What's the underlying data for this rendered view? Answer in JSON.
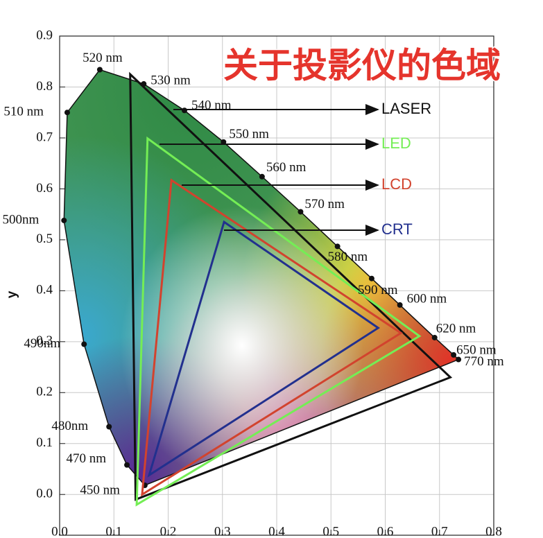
{
  "chart_data": {
    "type": "chromaticity",
    "title": "关于投影仪的色域",
    "ylabel": "y",
    "xlim": [
      0,
      0.8
    ],
    "ylim": [
      -0.08,
      0.9
    ],
    "xticks": [
      {
        "value": 0,
        "label": "0.0"
      },
      0.1,
      0.2,
      0.3,
      0.4,
      0.5,
      0.6,
      0.7,
      0.8
    ],
    "yticks": [
      {
        "value": 0,
        "label": "0.0"
      },
      0.1,
      0.2,
      0.3,
      0.4,
      0.5,
      0.6,
      0.7,
      0.8,
      0.9
    ],
    "grid": true,
    "spectral_locus": {
      "labels": [
        "450 nm",
        "470 nm",
        "480nm",
        "490nm",
        "500nm",
        "510 nm",
        "520 nm",
        "530 nm",
        "540 nm",
        "550 nm",
        "560 nm",
        "570 nm",
        "580 nm",
        "590 nm",
        "600 nm",
        "620 nm",
        "650 nm",
        "770 nm"
      ],
      "x": [
        0.157,
        0.124,
        0.091,
        0.045,
        0.008,
        0.014,
        0.074,
        0.155,
        0.23,
        0.302,
        0.373,
        0.444,
        0.512,
        0.575,
        0.627,
        0.691,
        0.726,
        0.735
      ],
      "y": [
        0.018,
        0.058,
        0.133,
        0.295,
        0.538,
        0.75,
        0.834,
        0.806,
        0.754,
        0.692,
        0.624,
        0.555,
        0.487,
        0.424,
        0.372,
        0.308,
        0.274,
        0.265
      ]
    },
    "gamuts": [
      {
        "name": "LASER",
        "color": "#111111",
        "x": [
          0.13,
          0.72,
          0.14
        ],
        "y": [
          0.825,
          0.23,
          -0.01
        ]
      },
      {
        "name": "LED",
        "color": "#74ee55",
        "x": [
          0.162,
          0.663,
          0.142
        ],
        "y": [
          0.699,
          0.311,
          -0.02
        ]
      },
      {
        "name": "LCD",
        "color": "#d2432e",
        "x": [
          0.206,
          0.629,
          0.152
        ],
        "y": [
          0.617,
          0.317,
          0.0
        ]
      },
      {
        "name": "CRT",
        "color": "#22308e",
        "x": [
          0.303,
          0.587,
          0.165
        ],
        "y": [
          0.535,
          0.327,
          0.038
        ]
      }
    ]
  }
}
